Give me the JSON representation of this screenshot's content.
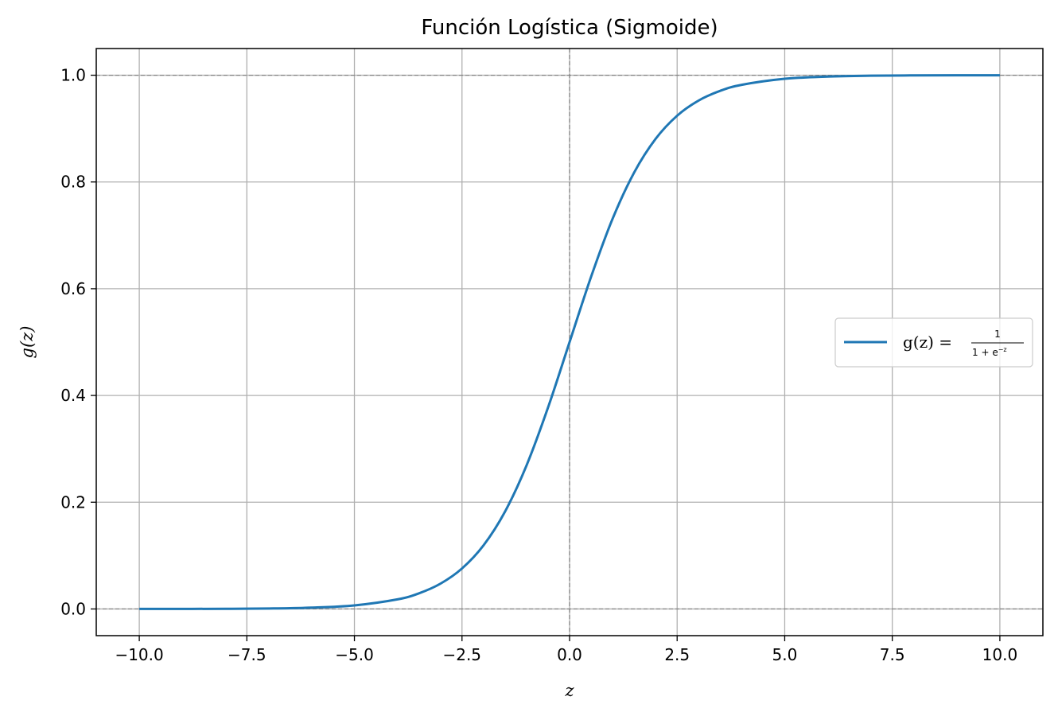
{
  "chart_data": {
    "type": "line",
    "title": "Función Logística (Sigmoide)",
    "xlabel": "z",
    "ylabel": "g(z)",
    "xlim": [
      -11,
      11
    ],
    "ylim": [
      -0.05,
      1.05
    ],
    "xticks": [
      -10.0,
      -7.5,
      -5.0,
      -2.5,
      0.0,
      2.5,
      5.0,
      7.5,
      10.0
    ],
    "xtick_labels": [
      "−10.0",
      "−7.5",
      "−5.0",
      "−2.5",
      "0.0",
      "2.5",
      "5.0",
      "7.5",
      "10.0"
    ],
    "yticks": [
      0.0,
      0.2,
      0.4,
      0.6,
      0.8,
      1.0
    ],
    "ytick_labels": [
      "0.0",
      "0.2",
      "0.4",
      "0.6",
      "0.8",
      "1.0"
    ],
    "grid": true,
    "legend_position": "center-right",
    "reference_lines": [
      {
        "orientation": "horizontal",
        "value": 0,
        "style": "dashed",
        "color": "#808080"
      },
      {
        "orientation": "horizontal",
        "value": 1,
        "style": "dashed",
        "color": "#808080"
      },
      {
        "orientation": "vertical",
        "value": 0,
        "style": "dashed",
        "color": "#808080"
      }
    ],
    "series": [
      {
        "name": "g(z) = 1 / (1 + e^-z)",
        "legend": {
          "lhs": "g(z) =",
          "numerator": "1",
          "denominator": "1 + e",
          "exponent": "−z"
        },
        "color": "#1f77b4",
        "x": [
          -10,
          -9,
          -8,
          -7,
          -6,
          -5,
          -4,
          -3.5,
          -3,
          -2.5,
          -2,
          -1.5,
          -1,
          -0.5,
          0,
          0.5,
          1,
          1.5,
          2,
          2.5,
          3,
          3.5,
          4,
          5,
          6,
          7,
          8,
          9,
          10
        ],
        "y": [
          5e-05,
          0.00012,
          0.00034,
          0.00091,
          0.00247,
          0.00669,
          0.01799,
          0.02931,
          0.04743,
          0.07586,
          0.1192,
          0.18243,
          0.26894,
          0.37754,
          0.5,
          0.62246,
          0.73106,
          0.81757,
          0.8808,
          0.92414,
          0.95257,
          0.97069,
          0.98201,
          0.99331,
          0.99753,
          0.99909,
          0.99966,
          0.99988,
          0.99995
        ]
      }
    ]
  }
}
